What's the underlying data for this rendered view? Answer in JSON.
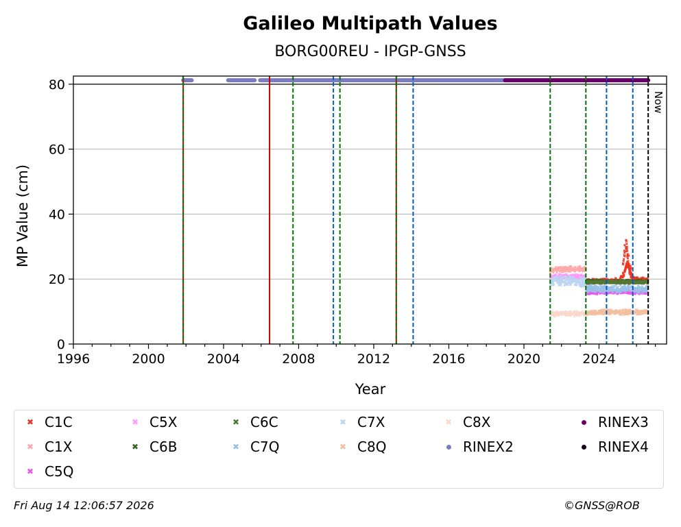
{
  "chart_data": {
    "type": "scatter",
    "title": "Galileo Multipath Values",
    "subtitle": "BORG00REU - IPGP-GNSS",
    "xlabel": "Year",
    "ylabel": "MP Value (cm)",
    "xlim": [
      1996,
      2027.6
    ],
    "ylim": [
      0,
      82.5
    ],
    "xticks": [
      1996,
      2000,
      2004,
      2008,
      2012,
      2016,
      2020,
      2024
    ],
    "yticks": [
      0,
      20,
      40,
      60,
      80
    ],
    "grid": "horizontal",
    "reference_line_y": 80,
    "now_label": "Now",
    "now_x": 2026.62,
    "vlines": [
      {
        "x": 2001.85,
        "color": "#cc0000",
        "style": "solid"
      },
      {
        "x": 2001.85,
        "color": "#007700",
        "style": "dashed"
      },
      {
        "x": 2006.45,
        "color": "#cc0000",
        "style": "solid"
      },
      {
        "x": 2007.7,
        "color": "#007700",
        "style": "dashed"
      },
      {
        "x": 2009.85,
        "color": "#005cc5",
        "style": "dashed"
      },
      {
        "x": 2010.2,
        "color": "#007700",
        "style": "dashed"
      },
      {
        "x": 2013.2,
        "color": "#cc0000",
        "style": "solid"
      },
      {
        "x": 2013.2,
        "color": "#007700",
        "style": "dashed"
      },
      {
        "x": 2014.1,
        "color": "#005cc5",
        "style": "dashed"
      },
      {
        "x": 2021.4,
        "color": "#007700",
        "style": "dashed"
      },
      {
        "x": 2023.3,
        "color": "#007700",
        "style": "dashed"
      },
      {
        "x": 2024.4,
        "color": "#005cc5",
        "style": "dashed"
      },
      {
        "x": 2025.8,
        "color": "#005cc5",
        "style": "dashed"
      },
      {
        "x": 2026.62,
        "color": "#000000",
        "style": "dashed"
      }
    ],
    "rinex_bars": [
      {
        "name": "RINEX2",
        "y": 81.2,
        "segments": [
          [
            2001.85,
            2002.3
          ],
          [
            2004.25,
            2005.65
          ],
          [
            2005.95,
            2019.0
          ]
        ]
      },
      {
        "name": "RINEX3",
        "y": 81.2,
        "segments": [
          [
            2019.0,
            2026.62
          ]
        ]
      }
    ],
    "series": [
      {
        "name": "C1C",
        "color": "#ee3322",
        "marker": "x",
        "segments": [
          {
            "x": [
              2023.3,
              2024.0,
              2024.8,
              2025.0,
              2025.3,
              2025.5,
              2025.8,
              2026.2,
              2026.6
            ],
            "y": [
              19.5,
              19.5,
              19.5,
              19.5,
              21.0,
              25.0,
              20.0,
              19.8,
              19.6
            ],
            "spread": 0.8
          },
          {
            "x": [
              2025.25,
              2025.35,
              2025.45,
              2025.55,
              2025.65,
              2025.72
            ],
            "y": [
              22.0,
              27.0,
              31.0,
              25.0,
              23.0,
              21.0
            ],
            "spread": 3.5
          }
        ]
      },
      {
        "name": "C1X",
        "color": "#ffaaaa",
        "marker": "x",
        "segments": [
          {
            "x": [
              2021.4,
              2022.0,
              2022.6,
              2023.3
            ],
            "y": [
              22.8,
              23.0,
              23.2,
              23.0
            ],
            "spread": 1.0
          }
        ]
      },
      {
        "name": "C5Q",
        "color": "#ee55ee",
        "marker": "x",
        "segments": [
          {
            "x": [
              2023.3,
              2024.0,
              2024.8,
              2025.6,
              2026.6
            ],
            "y": [
              15.8,
              15.9,
              16.0,
              16.0,
              15.9
            ],
            "spread": 0.6
          }
        ]
      },
      {
        "name": "C5X",
        "color": "#ff99ff",
        "marker": "x",
        "segments": [
          {
            "x": [
              2021.4,
              2022.2,
              2023.3
            ],
            "y": [
              20.6,
              20.8,
              20.6
            ],
            "spread": 0.8
          }
        ]
      },
      {
        "name": "C6B",
        "color": "#336622",
        "marker": "x",
        "segments": [
          {
            "x": [
              2023.3,
              2024.0,
              2024.8,
              2025.6,
              2026.6
            ],
            "y": [
              19.4,
              19.3,
              19.2,
              19.3,
              19.2
            ],
            "spread": 0.6
          }
        ]
      },
      {
        "name": "C6C",
        "color": "#557733",
        "marker": "x",
        "segments": [
          {
            "x": [
              2023.3,
              2024.4,
              2025.6,
              2026.6
            ],
            "y": [
              19.0,
              19.1,
              19.0,
              19.1
            ],
            "spread": 0.6
          }
        ]
      },
      {
        "name": "C7Q",
        "color": "#99c0e8",
        "marker": "x",
        "segments": [
          {
            "x": [
              2023.3,
              2024.0,
              2024.8,
              2025.6,
              2026.6
            ],
            "y": [
              17.0,
              17.0,
              16.8,
              17.0,
              16.8
            ],
            "spread": 1.3
          }
        ]
      },
      {
        "name": "C7X",
        "color": "#bcd5f2",
        "marker": "x",
        "segments": [
          {
            "x": [
              2021.4,
              2022.2,
              2023.3
            ],
            "y": [
              19.2,
              19.5,
              19.0
            ],
            "spread": 1.6
          }
        ]
      },
      {
        "name": "C8Q",
        "color": "#f2c0a0",
        "marker": "x",
        "segments": [
          {
            "x": [
              2023.3,
              2024.0,
              2024.8,
              2025.6,
              2026.6
            ],
            "y": [
              9.6,
              9.8,
              9.9,
              9.8,
              9.7
            ],
            "spread": 0.9
          }
        ]
      },
      {
        "name": "C8X",
        "color": "#fbd8cc",
        "marker": "x",
        "segments": [
          {
            "x": [
              2021.4,
              2022.2,
              2023.3
            ],
            "y": [
              9.2,
              9.4,
              9.3
            ],
            "spread": 0.9
          }
        ]
      }
    ],
    "legend": {
      "placement": "bottom",
      "entries": [
        {
          "name": "C1C",
          "color": "#ee3322",
          "marker": "x"
        },
        {
          "name": "C1X",
          "color": "#ffaaaa",
          "marker": "x"
        },
        {
          "name": "C5Q",
          "color": "#ee55ee",
          "marker": "x"
        },
        {
          "name": "C5X",
          "color": "#ff99ff",
          "marker": "x"
        },
        {
          "name": "C6B",
          "color": "#336622",
          "marker": "x"
        },
        {
          "name": "C6C",
          "color": "#557733",
          "marker": "x"
        },
        {
          "name": "C7Q",
          "color": "#99c0e8",
          "marker": "x"
        },
        {
          "name": "C7X",
          "color": "#bcd5f2",
          "marker": "x"
        },
        {
          "name": "C8Q",
          "color": "#f2c0a0",
          "marker": "x"
        },
        {
          "name": "C8X",
          "color": "#fbd8cc",
          "marker": "x"
        },
        {
          "name": "RINEX2",
          "color": "#7b7bbd",
          "marker": "dot"
        },
        {
          "name": "RINEX3",
          "color": "#660066",
          "marker": "dot"
        },
        {
          "name": "RINEX4",
          "color": "#1a001a",
          "marker": "dot"
        }
      ]
    }
  },
  "footer": {
    "timestamp": "Fri Aug 14 12:06:57 2026",
    "credit": "©GNSS@ROB"
  }
}
